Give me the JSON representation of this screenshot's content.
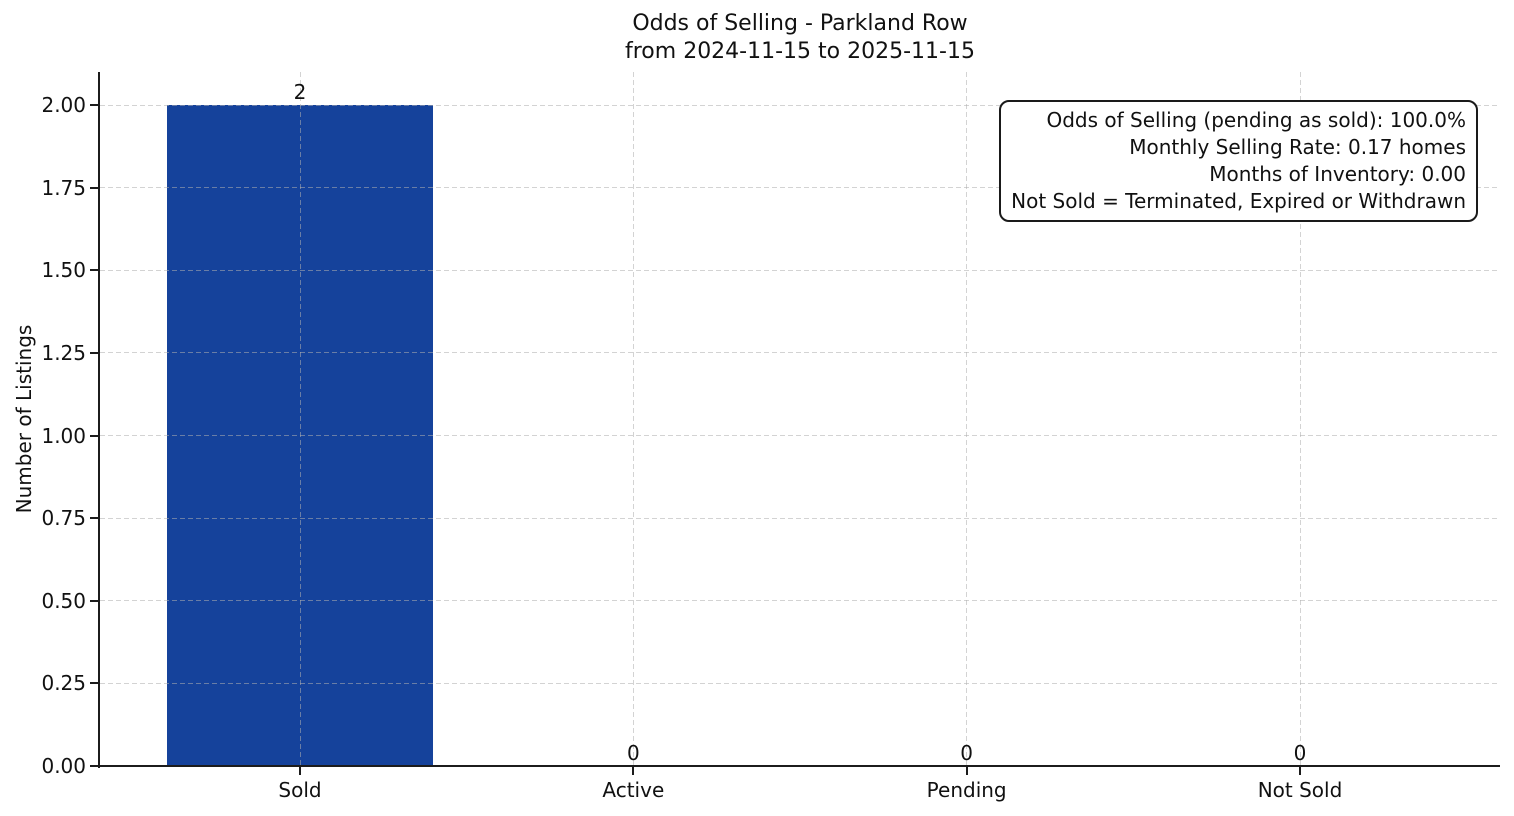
{
  "chart_data": {
    "type": "bar",
    "title": "Odds of Selling - Parkland Row",
    "subtitle": "from 2024-11-15 to 2025-11-15",
    "categories": [
      "Sold",
      "Active",
      "Pending",
      "Not Sold"
    ],
    "values": [
      2,
      0,
      0,
      0
    ],
    "bar_value_labels": [
      "2",
      "0",
      "0",
      "0"
    ],
    "xlabel": "",
    "ylabel": "Number of Listings",
    "ylim": [
      0,
      2.1
    ],
    "yticks": [
      0,
      0.25,
      0.5,
      0.75,
      1,
      1.25,
      1.5,
      1.75,
      2
    ],
    "ytick_labels": [
      "0.00",
      "0.25",
      "0.50",
      "0.75",
      "1.00",
      "1.25",
      "1.50",
      "1.75",
      "2.00"
    ],
    "grid": true,
    "grid_style": "dashed",
    "legend_position": "none",
    "bar_color": "#15429B",
    "axis_color": "#1c1c1c",
    "grid_color": "#d9d9d9",
    "annotation_box": {
      "position": "top-right",
      "text_align": "right",
      "lines": [
        "Odds of Selling (pending as sold): 100.0%",
        "Monthly Selling Rate: 0.17 homes",
        "Months of Inventory: 0.00",
        "Not Sold = Terminated, Expired or Withdrawn"
      ]
    }
  }
}
